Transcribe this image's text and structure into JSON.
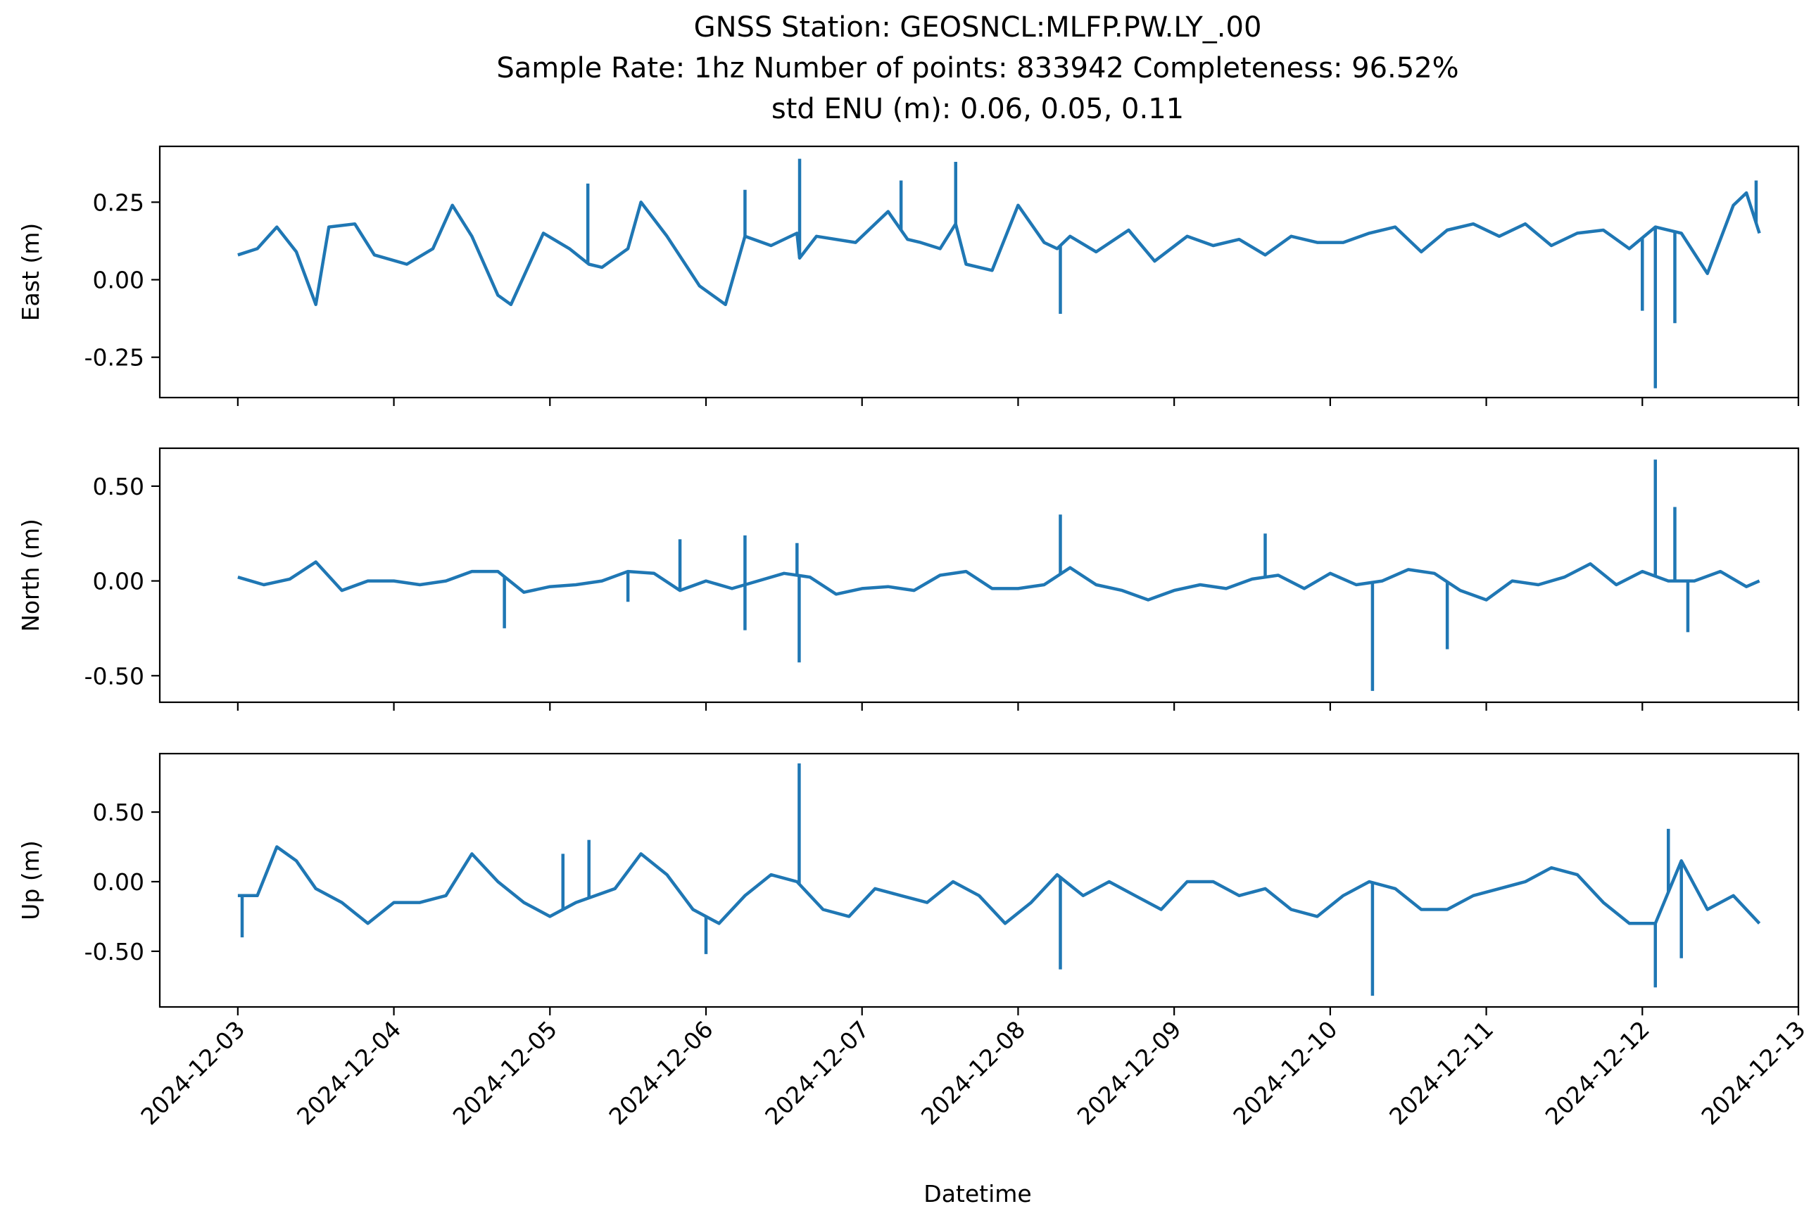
{
  "chart_data": {
    "type": "line",
    "title_lines": [
      "GNSS Station: GEOSNCL:MLFP.PW.LY_.00",
      "Sample Rate: 1hz   Number of points: 833942    Completeness:  96.52%",
      "std ENU (m):  0.06, 0.05, 0.11"
    ],
    "xlabel": "Datetime",
    "x_ticks": [
      "2024-12-03",
      "2024-12-04",
      "2024-12-05",
      "2024-12-06",
      "2024-12-07",
      "2024-12-08",
      "2024-12-09",
      "2024-12-10",
      "2024-12-11",
      "2024-12-12",
      "2024-12-13"
    ],
    "xlim": [
      "2024-12-02 12:00",
      "2024-12-13 00:00"
    ],
    "line_color": "#1f77b4",
    "grid": false,
    "panels": [
      {
        "id": "east",
        "ylabel": "East (m)",
        "ylim": [
          -0.38,
          0.43
        ],
        "yticks": [
          0.25,
          0.0,
          -0.25
        ],
        "ytick_labels": [
          "0.25",
          "0.00",
          "-0.25"
        ],
        "series": {
          "x": [
            "2024-12-03 00:00",
            "2024-12-03 03:00",
            "2024-12-03 06:00",
            "2024-12-03 09:00",
            "2024-12-03 12:00",
            "2024-12-03 14:00",
            "2024-12-03 18:00",
            "2024-12-03 21:00",
            "2024-12-04 02:00",
            "2024-12-04 06:00",
            "2024-12-04 09:00",
            "2024-12-04 12:00",
            "2024-12-04 16:00",
            "2024-12-04 18:00",
            "2024-12-04 23:00",
            "2024-12-05 03:00",
            "2024-12-05 06:00",
            "2024-12-05 08:00",
            "2024-12-05 12:00",
            "2024-12-05 14:00",
            "2024-12-05 18:00",
            "2024-12-05 23:00",
            "2024-12-06 03:00",
            "2024-12-06 06:00",
            "2024-12-06 10:00",
            "2024-12-06 14:00",
            "2024-12-06 14:24",
            "2024-12-06 17:00",
            "2024-12-06 23:00",
            "2024-12-07 04:00",
            "2024-12-07 07:00",
            "2024-12-07 09:00",
            "2024-12-07 12:00",
            "2024-12-07 14:24",
            "2024-12-07 16:00",
            "2024-12-07 20:00",
            "2024-12-08 00:00",
            "2024-12-08 04:00",
            "2024-12-08 06:00",
            "2024-12-08 08:00",
            "2024-12-08 12:00",
            "2024-12-08 17:00",
            "2024-12-08 21:00",
            "2024-12-09 02:00",
            "2024-12-09 06:00",
            "2024-12-09 10:00",
            "2024-12-09 14:00",
            "2024-12-09 18:00",
            "2024-12-09 22:00",
            "2024-12-10 02:00",
            "2024-12-10 06:00",
            "2024-12-10 10:00",
            "2024-12-10 14:00",
            "2024-12-10 18:00",
            "2024-12-10 22:00",
            "2024-12-11 02:00",
            "2024-12-11 06:00",
            "2024-12-11 10:00",
            "2024-12-11 14:00",
            "2024-12-11 18:00",
            "2024-12-11 22:00",
            "2024-12-12 02:00",
            "2024-12-12 06:00",
            "2024-12-12 10:00",
            "2024-12-12 14:00",
            "2024-12-12 16:00",
            "2024-12-12 18:00"
          ],
          "y": [
            0.08,
            0.1,
            0.17,
            0.09,
            -0.08,
            0.17,
            0.18,
            0.08,
            0.05,
            0.1,
            0.24,
            0.14,
            -0.05,
            -0.08,
            0.15,
            0.1,
            0.05,
            0.04,
            0.1,
            0.25,
            0.14,
            -0.02,
            -0.08,
            0.14,
            0.11,
            0.15,
            0.07,
            0.14,
            0.12,
            0.22,
            0.13,
            0.12,
            0.1,
            0.18,
            0.05,
            0.03,
            0.24,
            0.12,
            0.1,
            0.14,
            0.09,
            0.16,
            0.06,
            0.14,
            0.11,
            0.13,
            0.08,
            0.14,
            0.12,
            0.12,
            0.15,
            0.17,
            0.09,
            0.16,
            0.18,
            0.14,
            0.18,
            0.11,
            0.15,
            0.16,
            0.1,
            0.17,
            0.15,
            0.02,
            0.24,
            0.28,
            0.15
          ]
        },
        "spikes": [
          {
            "x": "2024-12-05 05:50",
            "y": 0.31
          },
          {
            "x": "2024-12-06 06:00",
            "y": 0.29
          },
          {
            "x": "2024-12-06 14:24",
            "y": 0.39
          },
          {
            "x": "2024-12-07 06:00",
            "y": 0.32
          },
          {
            "x": "2024-12-07 14:24",
            "y": 0.38
          },
          {
            "x": "2024-12-08 06:30",
            "y": -0.11
          },
          {
            "x": "2024-12-12 00:00",
            "y": -0.1
          },
          {
            "x": "2024-12-12 02:00",
            "y": -0.35
          },
          {
            "x": "2024-12-12 05:00",
            "y": -0.14
          },
          {
            "x": "2024-12-12 17:30",
            "y": 0.32
          }
        ]
      },
      {
        "id": "north",
        "ylabel": "North (m)",
        "ylim": [
          -0.64,
          0.7
        ],
        "yticks": [
          0.5,
          0.0,
          -0.5
        ],
        "ytick_labels": [
          "0.50",
          "0.00",
          "-0.50"
        ],
        "series": {
          "x": [
            "2024-12-03 00:00",
            "2024-12-03 04:00",
            "2024-12-03 08:00",
            "2024-12-03 12:00",
            "2024-12-03 16:00",
            "2024-12-03 20:00",
            "2024-12-04 00:00",
            "2024-12-04 04:00",
            "2024-12-04 08:00",
            "2024-12-04 12:00",
            "2024-12-04 16:00",
            "2024-12-04 20:00",
            "2024-12-05 00:00",
            "2024-12-05 04:00",
            "2024-12-05 08:00",
            "2024-12-05 12:00",
            "2024-12-05 16:00",
            "2024-12-05 20:00",
            "2024-12-06 00:00",
            "2024-12-06 04:00",
            "2024-12-06 08:00",
            "2024-12-06 12:00",
            "2024-12-06 16:00",
            "2024-12-06 20:00",
            "2024-12-07 00:00",
            "2024-12-07 04:00",
            "2024-12-07 08:00",
            "2024-12-07 12:00",
            "2024-12-07 16:00",
            "2024-12-07 20:00",
            "2024-12-08 00:00",
            "2024-12-08 04:00",
            "2024-12-08 08:00",
            "2024-12-08 12:00",
            "2024-12-08 16:00",
            "2024-12-08 20:00",
            "2024-12-09 00:00",
            "2024-12-09 04:00",
            "2024-12-09 08:00",
            "2024-12-09 12:00",
            "2024-12-09 16:00",
            "2024-12-09 20:00",
            "2024-12-10 00:00",
            "2024-12-10 04:00",
            "2024-12-10 08:00",
            "2024-12-10 12:00",
            "2024-12-10 16:00",
            "2024-12-10 20:00",
            "2024-12-11 00:00",
            "2024-12-11 04:00",
            "2024-12-11 08:00",
            "2024-12-11 12:00",
            "2024-12-11 16:00",
            "2024-12-11 20:00",
            "2024-12-12 00:00",
            "2024-12-12 04:00",
            "2024-12-12 08:00",
            "2024-12-12 12:00",
            "2024-12-12 16:00",
            "2024-12-12 18:00"
          ],
          "y": [
            0.02,
            -0.02,
            0.01,
            0.1,
            -0.05,
            0.0,
            0.0,
            -0.02,
            0.0,
            0.05,
            0.05,
            -0.06,
            -0.03,
            -0.02,
            0.0,
            0.05,
            0.04,
            -0.05,
            0.0,
            -0.04,
            0.0,
            0.04,
            0.02,
            -0.07,
            -0.04,
            -0.03,
            -0.05,
            0.03,
            0.05,
            -0.04,
            -0.04,
            -0.02,
            0.07,
            -0.02,
            -0.05,
            -0.1,
            -0.05,
            -0.02,
            -0.04,
            0.01,
            0.03,
            -0.04,
            0.04,
            -0.02,
            0.0,
            0.06,
            0.04,
            -0.05,
            -0.1,
            0.0,
            -0.02,
            0.02,
            0.09,
            -0.02,
            0.05,
            0.0,
            0.0,
            0.05,
            -0.03,
            0.0
          ]
        },
        "spikes": [
          {
            "x": "2024-12-04 17:00",
            "y": -0.25
          },
          {
            "x": "2024-12-05 12:00",
            "y": -0.11
          },
          {
            "x": "2024-12-05 20:00",
            "y": 0.22
          },
          {
            "x": "2024-12-06 06:00",
            "y": -0.26
          },
          {
            "x": "2024-12-06 06:00",
            "y": 0.24
          },
          {
            "x": "2024-12-06 14:00",
            "y": 0.2
          },
          {
            "x": "2024-12-06 14:20",
            "y": -0.43
          },
          {
            "x": "2024-12-08 06:30",
            "y": 0.35
          },
          {
            "x": "2024-12-09 14:00",
            "y": 0.25
          },
          {
            "x": "2024-12-10 06:30",
            "y": -0.58
          },
          {
            "x": "2024-12-10 18:00",
            "y": -0.36
          },
          {
            "x": "2024-12-12 02:00",
            "y": 0.64
          },
          {
            "x": "2024-12-12 05:00",
            "y": 0.39
          },
          {
            "x": "2024-12-12 07:00",
            "y": -0.27
          }
        ]
      },
      {
        "id": "up",
        "ylabel": "Up (m)",
        "ylim": [
          -0.9,
          0.92
        ],
        "yticks": [
          0.5,
          0.0,
          -0.5
        ],
        "ytick_labels": [
          "0.50",
          "0.00",
          "-0.50"
        ],
        "series": {
          "x": [
            "2024-12-03 00:00",
            "2024-12-03 03:00",
            "2024-12-03 06:00",
            "2024-12-03 09:00",
            "2024-12-03 12:00",
            "2024-12-03 16:00",
            "2024-12-03 20:00",
            "2024-12-04 00:00",
            "2024-12-04 04:00",
            "2024-12-04 08:00",
            "2024-12-04 12:00",
            "2024-12-04 16:00",
            "2024-12-04 20:00",
            "2024-12-05 00:00",
            "2024-12-05 04:00",
            "2024-12-05 07:00",
            "2024-12-05 10:00",
            "2024-12-05 14:00",
            "2024-12-05 18:00",
            "2024-12-05 22:00",
            "2024-12-06 02:00",
            "2024-12-06 06:00",
            "2024-12-06 10:00",
            "2024-12-06 14:00",
            "2024-12-06 18:00",
            "2024-12-06 22:00",
            "2024-12-07 02:00",
            "2024-12-07 06:00",
            "2024-12-07 10:00",
            "2024-12-07 14:00",
            "2024-12-07 18:00",
            "2024-12-07 22:00",
            "2024-12-08 02:00",
            "2024-12-08 06:00",
            "2024-12-08 10:00",
            "2024-12-08 14:00",
            "2024-12-08 18:00",
            "2024-12-08 22:00",
            "2024-12-09 02:00",
            "2024-12-09 06:00",
            "2024-12-09 10:00",
            "2024-12-09 14:00",
            "2024-12-09 18:00",
            "2024-12-09 22:00",
            "2024-12-10 02:00",
            "2024-12-10 06:00",
            "2024-12-10 10:00",
            "2024-12-10 14:00",
            "2024-12-10 18:00",
            "2024-12-10 22:00",
            "2024-12-11 02:00",
            "2024-12-11 06:00",
            "2024-12-11 10:00",
            "2024-12-11 14:00",
            "2024-12-11 18:00",
            "2024-12-11 22:00",
            "2024-12-12 02:00",
            "2024-12-12 06:00",
            "2024-12-12 10:00",
            "2024-12-12 14:00",
            "2024-12-12 18:00"
          ],
          "y": [
            -0.1,
            -0.1,
            0.25,
            0.15,
            -0.05,
            -0.15,
            -0.3,
            -0.15,
            -0.15,
            -0.1,
            0.2,
            0.0,
            -0.15,
            -0.25,
            -0.15,
            -0.1,
            -0.05,
            0.2,
            0.05,
            -0.2,
            -0.3,
            -0.1,
            0.05,
            0.0,
            -0.2,
            -0.25,
            -0.05,
            -0.1,
            -0.15,
            0.0,
            -0.1,
            -0.3,
            -0.15,
            0.05,
            -0.1,
            0.0,
            -0.1,
            -0.2,
            0.0,
            0.0,
            -0.1,
            -0.05,
            -0.2,
            -0.25,
            -0.1,
            0.0,
            -0.05,
            -0.2,
            -0.2,
            -0.1,
            -0.05,
            0.0,
            0.1,
            0.05,
            -0.15,
            -0.3,
            -0.3,
            0.15,
            -0.2,
            -0.1,
            -0.3
          ]
        },
        "spikes": [
          {
            "x": "2024-12-03 00:40",
            "y": -0.4
          },
          {
            "x": "2024-12-05 02:00",
            "y": 0.2
          },
          {
            "x": "2024-12-05 06:00",
            "y": 0.3
          },
          {
            "x": "2024-12-06 00:00",
            "y": -0.52
          },
          {
            "x": "2024-12-06 14:20",
            "y": 0.85
          },
          {
            "x": "2024-12-08 06:30",
            "y": -0.63
          },
          {
            "x": "2024-12-10 06:30",
            "y": -0.82
          },
          {
            "x": "2024-12-12 02:00",
            "y": -0.76
          },
          {
            "x": "2024-12-12 04:00",
            "y": 0.38
          },
          {
            "x": "2024-12-12 06:00",
            "y": -0.55
          }
        ]
      }
    ]
  }
}
